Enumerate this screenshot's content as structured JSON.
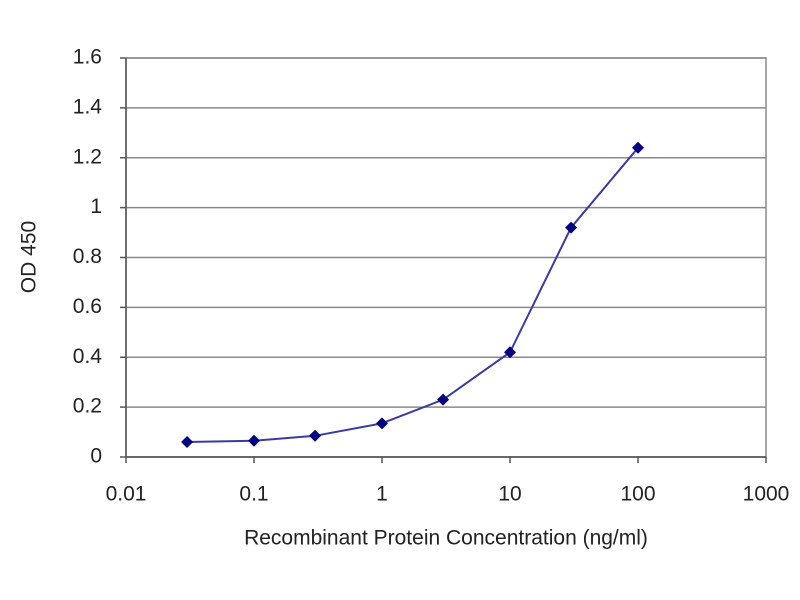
{
  "chart_data": {
    "type": "line",
    "x_label": "Recombinant Protein Concentration (ng/ml)",
    "y_label": "OD 450",
    "x": [
      0.03,
      0.1,
      0.3,
      1,
      3,
      10,
      30,
      100
    ],
    "series": [
      {
        "color": "#3a3aa0",
        "marker_color": "#000080",
        "values": [
          0.06,
          0.065,
          0.085,
          0.135,
          0.23,
          0.42,
          0.92,
          1.24
        ]
      }
    ],
    "xscale": "log",
    "xlim": [
      0.01,
      1000
    ],
    "xticks": [
      0.01,
      0.1,
      1,
      10,
      100,
      1000
    ],
    "ylim": [
      0,
      1.6
    ],
    "yticks": [
      0,
      0.2,
      0.4,
      0.6,
      0.8,
      1,
      1.2,
      1.4,
      1.6
    ],
    "grid": true
  }
}
